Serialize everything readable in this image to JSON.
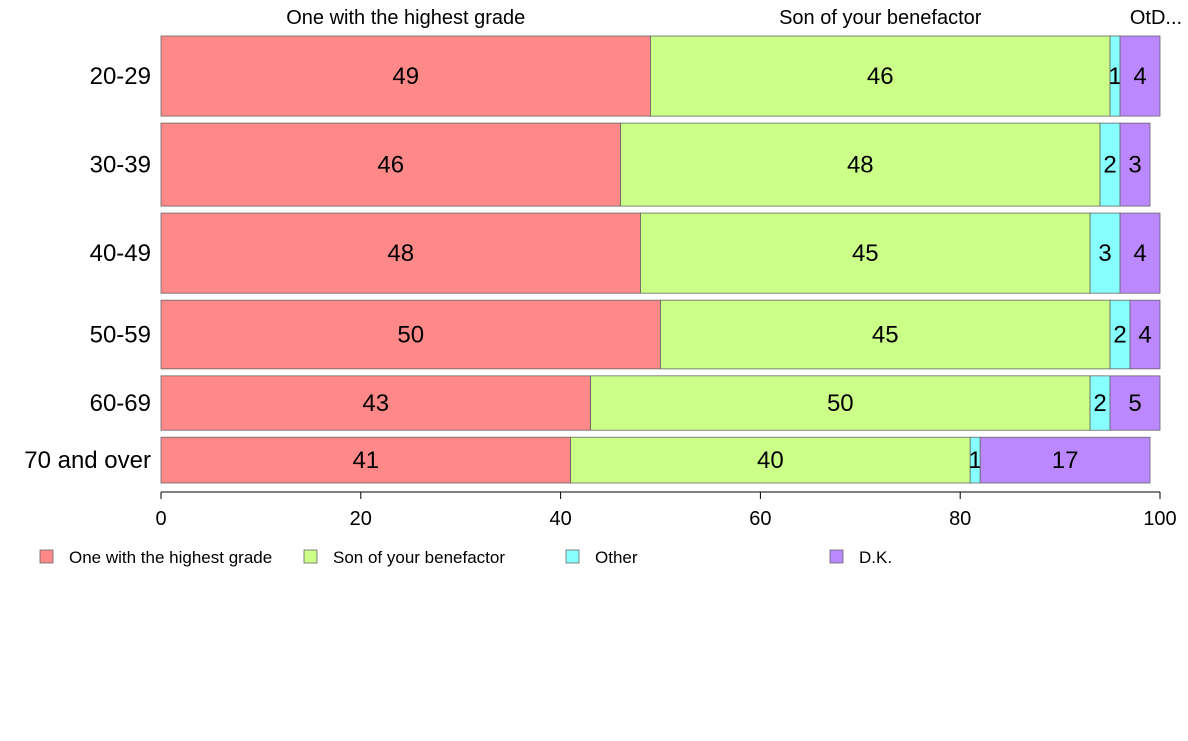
{
  "chart_data": {
    "type": "bar",
    "orientation": "horizontal",
    "stacked": true,
    "categories": [
      "20-29",
      "30-39",
      "40-49",
      "50-59",
      "60-69",
      "70 and over"
    ],
    "row_weights": [
      1.4,
      1.45,
      1.4,
      1.2,
      0.95,
      0.8
    ],
    "series": [
      {
        "name": "One with the highest grade",
        "color": "#ff8888",
        "values": [
          49,
          46,
          48,
          50,
          43,
          41
        ]
      },
      {
        "name": "Son of your benefactor",
        "color": "#ccff88",
        "values": [
          46,
          48,
          45,
          45,
          50,
          40
        ]
      },
      {
        "name": "Other",
        "color": "#88ffff",
        "values": [
          1,
          2,
          3,
          2,
          2,
          1
        ]
      },
      {
        "name": "D.K.",
        "color": "#bb88ff",
        "values": [
          4,
          3,
          4,
          4,
          5,
          17
        ]
      }
    ],
    "top_labels": [
      "One with the highest grade",
      "Son of your benefactor",
      "OtD..."
    ],
    "top_label_positions": [
      24.5,
      72,
      99.6
    ],
    "xlim": [
      0,
      100
    ],
    "xticks": [
      0,
      20,
      40,
      60,
      80,
      100
    ],
    "legend_position": "bottom",
    "grid": false
  }
}
